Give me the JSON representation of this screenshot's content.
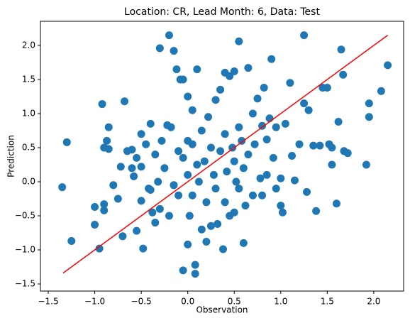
{
  "chart_data": {
    "type": "scatter",
    "title": "Location: CR, Lead Month: 6, Data: Test",
    "x_label": "Observation",
    "y_label": "Prediction",
    "xlim": [
      -1.584,
      2.321
    ],
    "ylim": [
      -1.604,
      2.354
    ],
    "xticks": [
      {
        "value": -1.5,
        "label": "−1.5"
      },
      {
        "value": -1.0,
        "label": "−1.0"
      },
      {
        "value": -0.5,
        "label": "−0.5"
      },
      {
        "value": 0,
        "label": "0.0"
      },
      0.5,
      {
        "value": 1,
        "label": "1.0"
      },
      1.5,
      {
        "value": 2,
        "label": "2.0"
      }
    ],
    "yticks": [
      {
        "value": -1.5,
        "label": "−1.5"
      },
      {
        "value": -1.0,
        "label": "−1.0"
      },
      {
        "value": -0.5,
        "label": "−0.5"
      },
      {
        "value": 0,
        "label": "0.0"
      },
      0.5,
      {
        "value": 1,
        "label": "1.0"
      },
      1.5,
      {
        "value": 2,
        "label": "2.0"
      }
    ],
    "series": [
      {
        "type": "scatter",
        "color": "#1f77b4",
        "x": [
          -1.35,
          -1.3,
          -1.25,
          -1.0,
          -1.0,
          -0.95,
          -0.92,
          -0.9,
          -0.9,
          -0.9,
          -0.87,
          -0.85,
          -0.85,
          -0.8,
          -0.75,
          -0.72,
          -0.7,
          -0.68,
          -0.65,
          -0.6,
          -0.6,
          -0.58,
          -0.55,
          -0.55,
          -0.5,
          -0.5,
          -0.5,
          -0.48,
          -0.45,
          -0.42,
          -0.4,
          -0.4,
          -0.38,
          -0.35,
          -0.35,
          -0.32,
          -0.3,
          -0.3,
          -0.28,
          -0.25,
          -0.22,
          -0.2,
          -0.2,
          -0.18,
          -0.15,
          -0.15,
          -0.12,
          -0.1,
          -0.1,
          -0.08,
          -0.05,
          -0.05,
          -0.05,
          0.0,
          0.0,
          0.0,
          0.0,
          0.02,
          0.05,
          0.05,
          0.05,
          0.08,
          0.08,
          0.1,
          0.1,
          0.12,
          0.15,
          0.15,
          0.18,
          0.2,
          0.2,
          0.22,
          0.25,
          0.25,
          0.28,
          0.3,
          0.3,
          0.32,
          0.35,
          0.35,
          0.38,
          0.4,
          0.4,
          0.4,
          0.42,
          0.45,
          0.45,
          0.48,
          0.5,
          0.5,
          0.5,
          0.52,
          0.55,
          0.55,
          0.55,
          0.58,
          0.6,
          0.6,
          0.62,
          0.65,
          0.65,
          0.7,
          0.7,
          0.72,
          0.75,
          0.78,
          0.8,
          0.8,
          0.82,
          0.85,
          0.85,
          0.88,
          0.9,
          0.92,
          0.95,
          0.95,
          1.0,
          1.0,
          1.02,
          1.05,
          1.1,
          1.12,
          1.15,
          1.2,
          1.25,
          1.25,
          1.28,
          1.3,
          1.35,
          1.38,
          1.42,
          1.45,
          1.5,
          1.52,
          1.55,
          1.55,
          1.6,
          1.62,
          1.65,
          1.67,
          1.68,
          1.72,
          1.92,
          1.95,
          1.95,
          2.08,
          2.15
        ],
        "values": [
          -0.08,
          0.58,
          -0.87,
          -0.63,
          -0.37,
          -0.98,
          1.14,
          -0.33,
          -0.42,
          0.5,
          0.6,
          0.8,
          0.48,
          -0.05,
          -0.25,
          0.22,
          -0.8,
          1.18,
          0.45,
          0.47,
          0.2,
          0.08,
          0.35,
          -0.72,
          0.7,
          0.22,
          -0.28,
          -0.98,
          0.55,
          -0.1,
          -0.12,
          0.85,
          -0.45,
          0.4,
          -0.6,
          0.0,
          -0.4,
          1.96,
          0.6,
          0.2,
          0.83,
          2.15,
          -0.5,
          0.8,
          1.92,
          -0.05,
          1.65,
          0.45,
          -0.2,
          1.5,
          1.5,
          0.35,
          -1.3,
          1.25,
          0.6,
          0.1,
          -0.92,
          -0.5,
          1.05,
          0.55,
          -0.2,
          -1.35,
          -1.22,
          1.65,
          0.25,
          0.0,
          -0.7,
          0.75,
          0.3,
          -0.88,
          -0.3,
          0.95,
          0.5,
          -0.65,
          0.1,
          1.2,
          -0.1,
          -0.62,
          0.45,
          1.35,
          -0.99,
          1.6,
          0.7,
          -0.3,
          0.15,
          -0.5,
          1.55,
          0.5,
          1.62,
          0.3,
          -0.45,
          0.0,
          2.06,
          0.8,
          -0.1,
          0.6,
          -0.9,
          0.2,
          -0.35,
          1.67,
          0.4,
          1.0,
          -0.2,
          0.55,
          1.22,
          0.05,
          0.82,
          -0.2,
          1.38,
          0.1,
          0.62,
          0.93,
          1.8,
          0.35,
          -0.1,
          0.8,
          -0.35,
          0.05,
          -0.45,
          0.85,
          1.45,
          0.38,
          0.02,
          0.55,
          2.15,
          1.15,
          -0.15,
          1.05,
          0.53,
          -0.43,
          0.53,
          1.38,
          1.38,
          0.55,
          0.25,
          0.5,
          -0.32,
          0.88,
          1.94,
          1.57,
          0.45,
          0.42,
          0.25,
          0.95,
          1.15,
          1.33,
          1.71
        ]
      },
      {
        "type": "line",
        "color": "#ff0000",
        "x": [
          -1.34,
          2.15
        ],
        "values": [
          -1.34,
          2.15
        ]
      }
    ]
  }
}
